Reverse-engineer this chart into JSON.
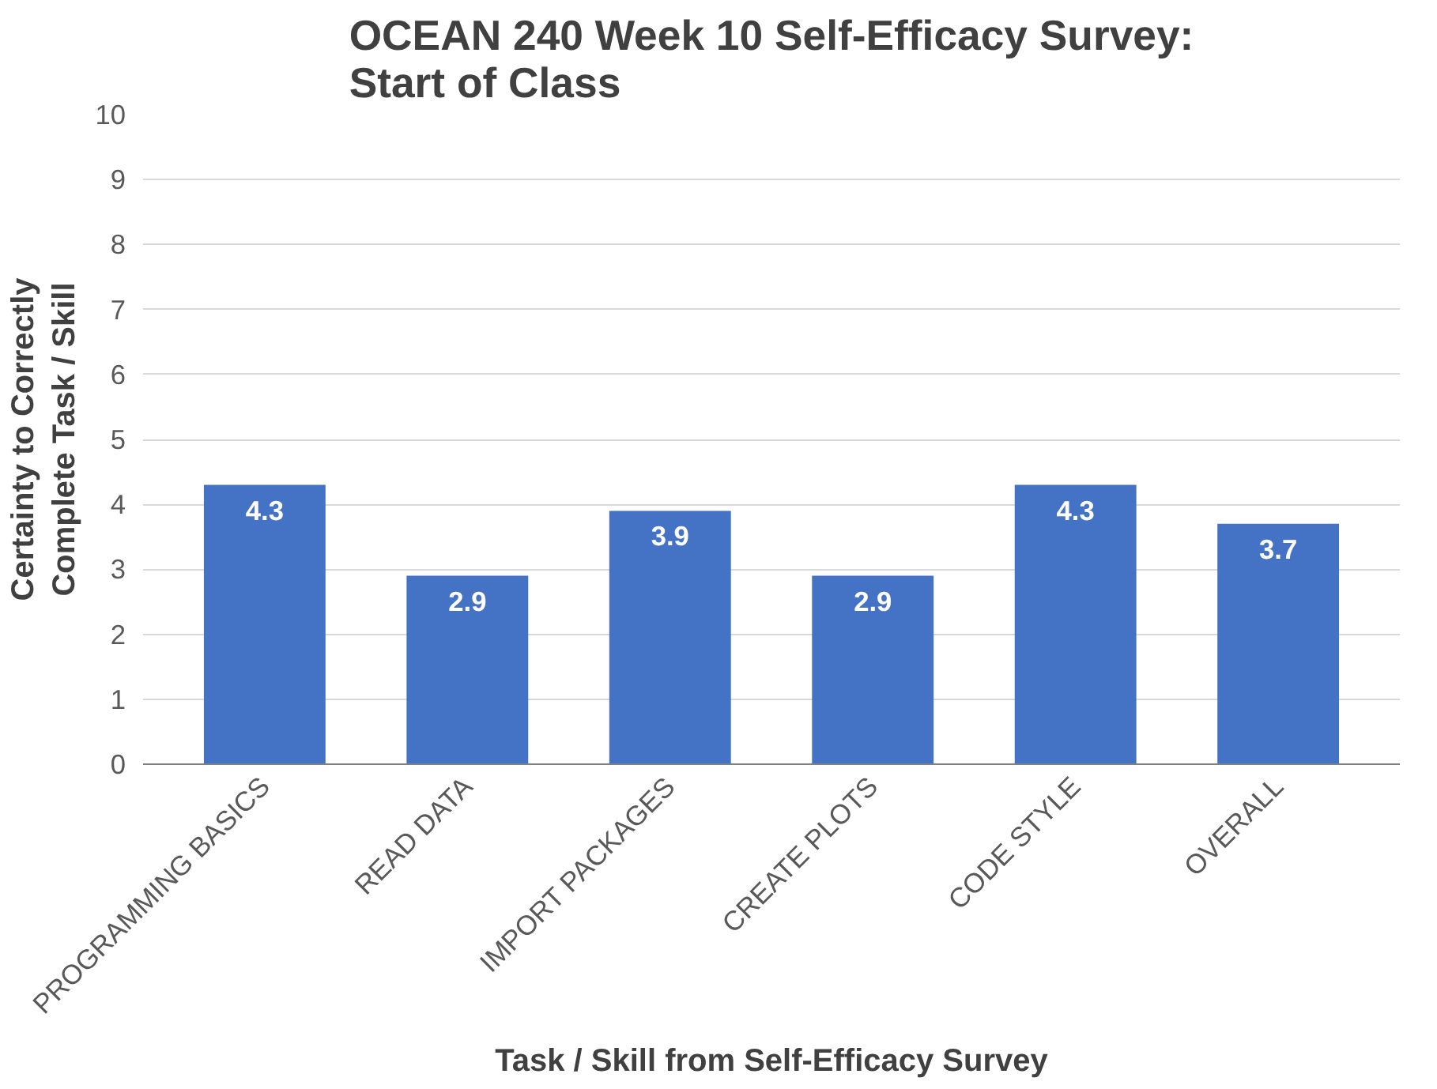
{
  "chart_data": {
    "type": "bar",
    "title": "OCEAN 240 Week 10 Self-Efficacy Survey:\nStart of Class",
    "xlabel": "Task / Skill from Self-Efficacy Survey",
    "ylabel": "Certainty to Correctly\nComplete Task / Skill",
    "categories": [
      "PROGRAMMING BASICS",
      "READ DATA",
      "IMPORT PACKAGES",
      "CREATE PLOTS",
      "CODE STYLE",
      "OVERALL"
    ],
    "values": [
      4.3,
      2.9,
      3.9,
      2.9,
      4.3,
      3.7
    ],
    "color": "#4472c4",
    "ylim": [
      0,
      10
    ],
    "yticks": [
      0,
      1,
      2,
      3,
      4,
      5,
      6,
      7,
      8,
      9,
      10
    ],
    "grid": "y",
    "data_labels": true
  }
}
